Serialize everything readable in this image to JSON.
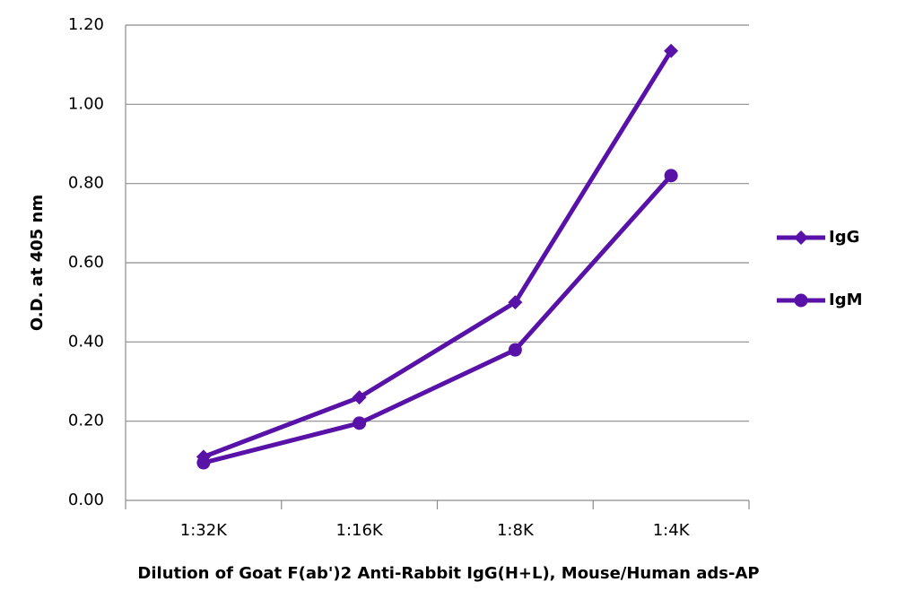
{
  "chart_data": {
    "type": "line",
    "x_label": "Dilution of Goat F(ab')2 Anti-Rabbit IgG(H+L), Mouse/Human ads-AP",
    "y_label": "O.D. at 405 nm",
    "categories": [
      "1:32K",
      "1:16K",
      "1:8K",
      "1:4K"
    ],
    "series": [
      {
        "name": "IgG",
        "color": "#5812a8",
        "marker": "diamond",
        "values": [
          0.11,
          0.26,
          0.5,
          1.135
        ]
      },
      {
        "name": "IgM",
        "color": "#5812a8",
        "marker": "circle",
        "values": [
          0.095,
          0.195,
          0.38,
          0.82
        ]
      }
    ],
    "ylim": [
      0,
      1.2
    ],
    "yticks": [
      {
        "value": 0,
        "label": "0.00"
      },
      {
        "value": 0.2,
        "label": "0.20"
      },
      {
        "value": 0.4,
        "label": "0.40"
      },
      {
        "value": 0.6,
        "label": "0.60"
      },
      {
        "value": 0.8,
        "label": "0.80"
      },
      {
        "value": 1,
        "label": "1.00"
      },
      {
        "value": 1.2,
        "label": "1.20"
      }
    ],
    "grid": true,
    "legend": "right"
  }
}
